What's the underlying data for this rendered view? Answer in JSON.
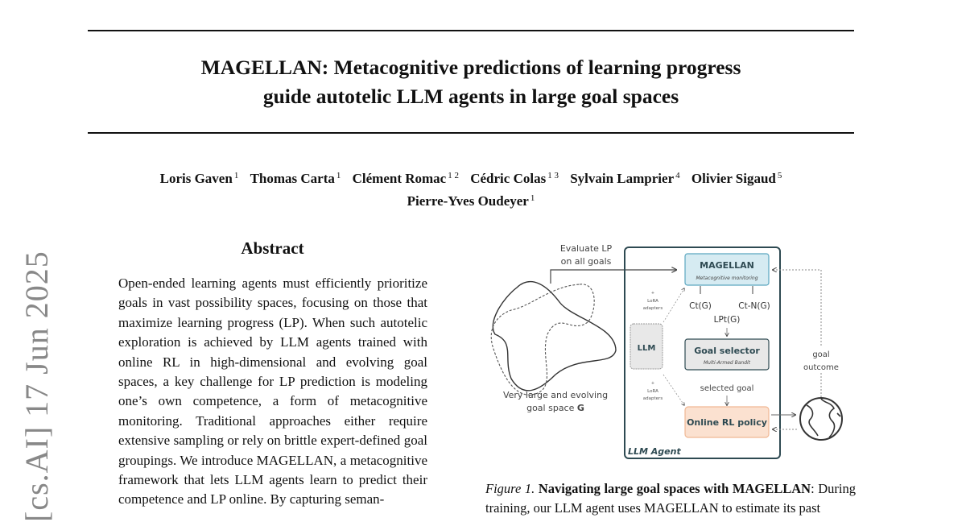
{
  "paper": {
    "title_lines": [
      "MAGELLAN: Metacognitive predictions of learning progress",
      "guide autotelic LLM agents in large goal spaces"
    ],
    "authors": [
      {
        "name": "Loris Gaven",
        "aff": "1"
      },
      {
        "name": "Thomas Carta",
        "aff": "1"
      },
      {
        "name": "Clément Romac",
        "aff": "1 2"
      },
      {
        "name": "Cédric Colas",
        "aff": "1 3"
      },
      {
        "name": "Sylvain Lamprier",
        "aff": "4"
      },
      {
        "name": "Olivier Sigaud",
        "aff": "5"
      },
      {
        "name": "Pierre-Yves Oudeyer",
        "aff": "1"
      }
    ],
    "abstract_heading": "Abstract",
    "abstract": "Open-ended learning agents must efficiently prioritize goals in vast possibility spaces, focusing on those that maximize learning progress (LP). When such autotelic exploration is achieved by LLM agents trained with online RL in high-dimensional and evolving goal spaces, a key challenge for LP prediction is modeling one’s own competence, a form of metacognitive monitoring. Traditional approaches either require extensive sampling or rely on brittle expert-defined goal groupings. We introduce MAGELLAN, a metacognitive framework that lets LLM agents learn to predict their competence and LP online. By capturing seman-",
    "arxiv_stamp": "[cs.AI]  17 Jun 2025",
    "figure": {
      "evaluate_lp_1": "Evaluate LP",
      "evaluate_lp_2": "on all goals",
      "magellan": "MAGELLAN",
      "magellan_sub": "Metacognitive monitoring",
      "ct": "Ct(G)",
      "ctn": "Ct-N(G)",
      "lp": "LPt(G)",
      "goal_selector": "Goal selector",
      "goal_selector_sub": "Multi-Armed Bandit",
      "llm": "LLM",
      "lora_plus": "+",
      "lora_1": "LoRA",
      "lora_2": "adapters",
      "selected_goal": "selected goal",
      "rl_policy": "Online RL policy",
      "agent_label": "LLM Agent",
      "goal_space_1": "Very large and evolving",
      "goal_space_2": "goal space ",
      "goal_space_G": "G",
      "goal_outcome_1": "goal",
      "goal_outcome_2": "outcome",
      "colors": {
        "agent_border": "#2e4a52",
        "magellan_fill": "#d6ebf2",
        "magellan_border": "#5aa6c0",
        "selector_fill": "#e8e8e8",
        "rl_fill": "#fbe1d0",
        "rl_border": "#f0b894"
      }
    },
    "caption_label": "Figure 1.",
    "caption_bold": "Navigating large goal spaces with MAGELLAN",
    "caption_rest": ": During training, our LLM agent uses MAGELLAN to estimate its past"
  }
}
